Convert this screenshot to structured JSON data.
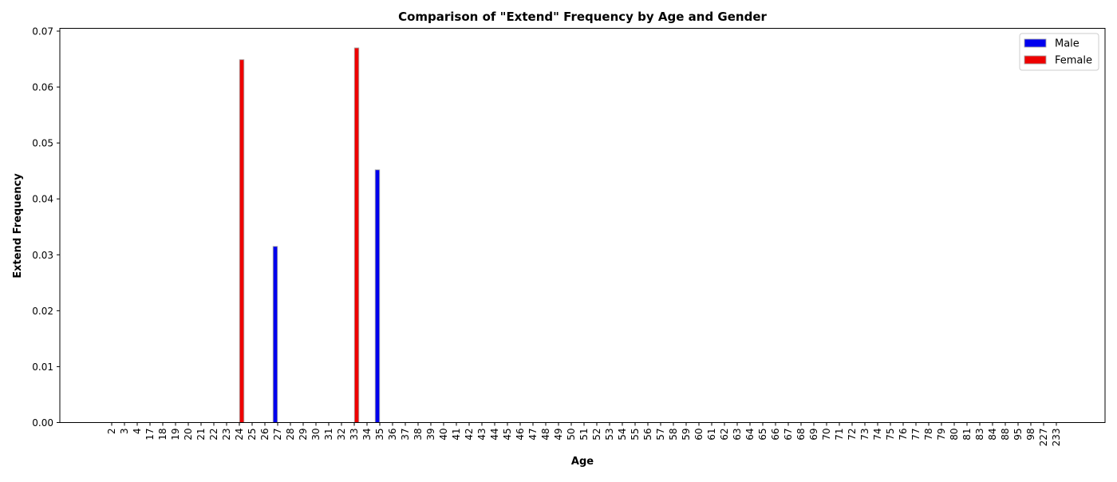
{
  "chart_data": {
    "type": "bar",
    "title": "Comparison of \"Extend\" Frequency by Age and Gender",
    "xlabel": "Age",
    "ylabel": "Extend Frequency",
    "categories": [
      "2",
      "3",
      "4",
      "17",
      "18",
      "19",
      "20",
      "21",
      "22",
      "23",
      "24",
      "25",
      "26",
      "27",
      "28",
      "29",
      "30",
      "31",
      "32",
      "33",
      "34",
      "35",
      "36",
      "37",
      "38",
      "39",
      "40",
      "41",
      "42",
      "43",
      "44",
      "45",
      "46",
      "47",
      "48",
      "49",
      "50",
      "51",
      "52",
      "53",
      "54",
      "55",
      "56",
      "57",
      "58",
      "59",
      "60",
      "61",
      "62",
      "63",
      "64",
      "65",
      "66",
      "67",
      "68",
      "69",
      "70",
      "71",
      "72",
      "73",
      "74",
      "75",
      "76",
      "77",
      "78",
      "79",
      "80",
      "81",
      "83",
      "84",
      "88",
      "95",
      "98",
      "227",
      "233"
    ],
    "series": [
      {
        "name": "Male",
        "color": "#0000ee",
        "values": [
          0,
          0,
          0,
          0,
          0,
          0,
          0,
          0,
          0,
          0,
          0,
          0,
          0,
          0.0315,
          0,
          0,
          0,
          0,
          0,
          0,
          0,
          0.0452,
          0,
          0,
          0,
          0,
          0,
          0,
          0,
          0,
          0,
          0,
          0,
          0,
          0,
          0,
          0,
          0,
          0,
          0,
          0,
          0,
          0,
          0,
          0,
          0,
          0,
          0,
          0,
          0,
          0,
          0,
          0,
          0,
          0,
          0,
          0,
          0,
          0,
          0,
          0,
          0,
          0,
          0,
          0,
          0,
          0,
          0,
          0,
          0,
          0,
          0,
          0,
          0,
          0
        ]
      },
      {
        "name": "Female",
        "color": "#ee0000",
        "values": [
          0,
          0,
          0,
          0,
          0,
          0,
          0,
          0,
          0,
          0,
          0.0649,
          0,
          0,
          0,
          0,
          0,
          0,
          0,
          0,
          0.067,
          0,
          0,
          0,
          0,
          0,
          0,
          0,
          0,
          0,
          0,
          0,
          0,
          0,
          0,
          0,
          0,
          0,
          0,
          0,
          0,
          0,
          0,
          0,
          0,
          0,
          0,
          0,
          0,
          0,
          0,
          0,
          0,
          0,
          0,
          0,
          0,
          0,
          0,
          0,
          0,
          0,
          0,
          0,
          0,
          0,
          0,
          0,
          0,
          0,
          0,
          0,
          0,
          0,
          0,
          0
        ]
      }
    ],
    "ylim": [
      0,
      0.0705
    ],
    "yticks": [
      0.0,
      0.01,
      0.02,
      0.03,
      0.04,
      0.05,
      0.06,
      0.07
    ],
    "ytick_labels": [
      "0.00",
      "0.01",
      "0.02",
      "0.03",
      "0.04",
      "0.05",
      "0.06",
      "0.07"
    ],
    "grid": false,
    "legend_position": "top-right"
  }
}
